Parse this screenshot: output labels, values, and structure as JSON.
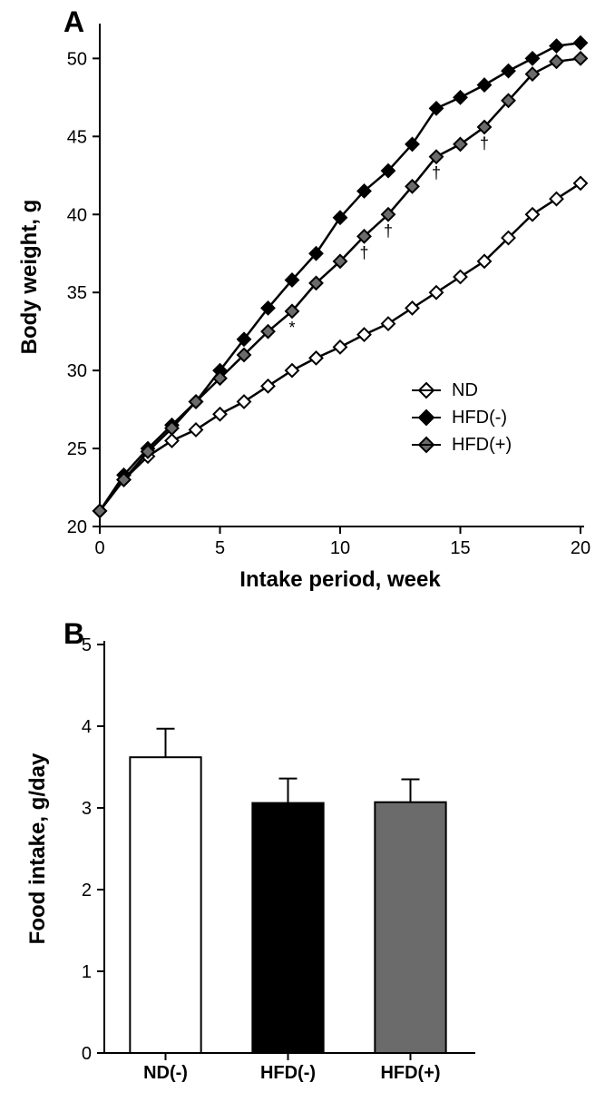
{
  "panelA": {
    "label": "A",
    "label_fontsize": 32,
    "type": "line",
    "xlabel": "Intake period, week",
    "ylabel": "Body weight, g",
    "xlim": [
      0,
      20
    ],
    "ylim": [
      20,
      52
    ],
    "xtick_step": 5,
    "yticks": [
      20,
      25,
      30,
      35,
      40,
      45,
      50
    ],
    "label_fontsize_axis": 24,
    "tick_fontsize": 20,
    "background_color": "#ffffff",
    "axis_color": "#000000",
    "line_width": 2.5,
    "marker_size": 7,
    "series": [
      {
        "name": "ND",
        "marker": "diamond",
        "fill": "#ffffff",
        "stroke": "#000000",
        "line_color": "#000000",
        "x": [
          0,
          1,
          2,
          3,
          4,
          5,
          6,
          7,
          8,
          9,
          10,
          11,
          12,
          13,
          14,
          15,
          16,
          17,
          18,
          19,
          20
        ],
        "y": [
          21.0,
          23.0,
          24.5,
          25.5,
          26.2,
          27.2,
          28.0,
          29.0,
          30.0,
          30.8,
          31.5,
          32.3,
          33.0,
          34.0,
          35.0,
          36.0,
          37.0,
          38.5,
          40.0,
          41.0,
          42.0
        ]
      },
      {
        "name": "HFD(-)",
        "marker": "diamond",
        "fill": "#000000",
        "stroke": "#000000",
        "line_color": "#000000",
        "x": [
          0,
          1,
          2,
          3,
          4,
          5,
          6,
          7,
          8,
          9,
          10,
          11,
          12,
          13,
          14,
          15,
          16,
          17,
          18,
          19,
          20
        ],
        "y": [
          21.0,
          23.3,
          25.0,
          26.5,
          28.0,
          30.0,
          32.0,
          34.0,
          35.8,
          37.5,
          39.8,
          41.5,
          42.8,
          44.5,
          46.8,
          47.5,
          48.3,
          49.2,
          50.0,
          50.8,
          51.0
        ]
      },
      {
        "name": "HFD(+)",
        "marker": "diamond",
        "fill": "#6b6b6b",
        "stroke": "#000000",
        "line_color": "#000000",
        "x": [
          0,
          1,
          2,
          3,
          4,
          5,
          6,
          7,
          8,
          9,
          10,
          11,
          12,
          13,
          14,
          15,
          16,
          17,
          18,
          19,
          20
        ],
        "y": [
          21.0,
          23.0,
          24.8,
          26.3,
          28.0,
          29.5,
          31.0,
          32.5,
          33.8,
          35.6,
          37.0,
          38.6,
          40.0,
          41.8,
          43.7,
          44.5,
          45.6,
          47.3,
          49.0,
          49.8,
          50.0
        ]
      }
    ],
    "annotations": [
      {
        "x": 8,
        "series": "HFD(+)",
        "symbol": "*",
        "dy": 14
      },
      {
        "x": 11,
        "series": "HFD(+)",
        "symbol": "†",
        "dy": 14
      },
      {
        "x": 12,
        "series": "HFD(+)",
        "symbol": "†",
        "dy": 14
      },
      {
        "x": 14,
        "series": "HFD(+)",
        "symbol": "†",
        "dy": 14
      },
      {
        "x": 16,
        "series": "HFD(+)",
        "symbol": "†",
        "dy": 14
      }
    ],
    "legend": {
      "position": "inside-bottom-right",
      "items": [
        {
          "label": "ND",
          "fill": "#ffffff",
          "stroke": "#000000"
        },
        {
          "label": "HFD(-)",
          "fill": "#000000",
          "stroke": "#000000"
        },
        {
          "label": "HFD(+)",
          "fill": "#6b6b6b",
          "stroke": "#000000"
        }
      ]
    }
  },
  "panelB": {
    "label": "B",
    "label_fontsize": 32,
    "type": "bar",
    "ylabel": "Food intake, g/day",
    "ylim": [
      0,
      5
    ],
    "ytick_step": 1,
    "label_fontsize_axis": 24,
    "tick_fontsize": 20,
    "background_color": "#ffffff",
    "axis_color": "#000000",
    "bar_border": "#000000",
    "bar_border_width": 2,
    "error_bar_color": "#000000",
    "error_bar_width": 2,
    "categories": [
      "ND(-)",
      "HFD(-)",
      "HFD(+)"
    ],
    "values": [
      3.62,
      3.06,
      3.07
    ],
    "errors": [
      0.35,
      0.3,
      0.28
    ],
    "bar_colors": [
      "#ffffff",
      "#000000",
      "#6b6b6b"
    ],
    "bar_width": 0.58
  }
}
